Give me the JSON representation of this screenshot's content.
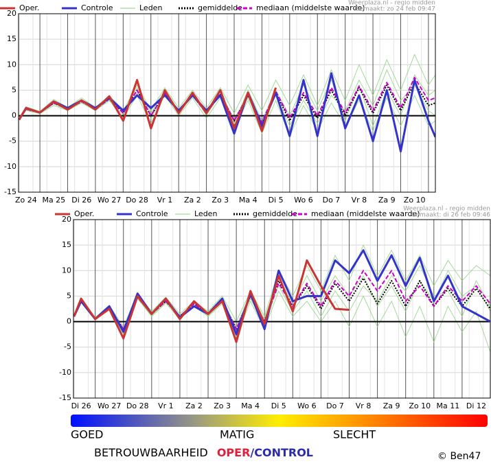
{
  "chart_data": [
    {
      "type": "line",
      "source": "Weerplaza.nl - regio midden",
      "made": "Gemaakt: zo 24 feb 09:47",
      "xlim": [
        -0.27,
        14.75
      ],
      "ylim": [
        -15,
        20
      ],
      "yticks": [
        20,
        15,
        10,
        5,
        0,
        -5,
        -10,
        -15
      ],
      "xticks": [
        {
          "value": 0,
          "label": "Zo 24"
        },
        {
          "value": 1,
          "label": "Ma 25"
        },
        {
          "value": 2,
          "label": "Di 26"
        },
        {
          "value": 3,
          "label": "Wo 27"
        },
        {
          "value": 4,
          "label": "Do 28"
        },
        {
          "value": 5,
          "label": "Vr 1"
        },
        {
          "value": 6,
          "label": "Za 2"
        },
        {
          "value": 7,
          "label": "Zo 3"
        },
        {
          "value": 8,
          "label": "Ma 4"
        },
        {
          "value": 9,
          "label": "Di 5"
        },
        {
          "value": 10,
          "label": "Wo 6"
        },
        {
          "value": 11,
          "label": "Do 7"
        },
        {
          "value": 12,
          "label": "Vr 8"
        },
        {
          "value": 13,
          "label": "Za 9"
        },
        {
          "value": 14,
          "label": "Zo 10"
        }
      ],
      "grid": true,
      "x": [
        -0.25,
        0,
        0.5,
        1,
        1.5,
        2,
        2.5,
        3,
        3.5,
        4,
        4.5,
        5,
        5.5,
        6,
        6.5,
        7,
        7.5,
        8,
        8.5,
        9,
        9.5,
        10,
        10.5,
        11,
        11.5,
        12,
        12.5,
        13,
        13.5,
        14,
        14.5,
        14.75
      ],
      "members": {
        "name": "Leden",
        "color": "#8fd07f",
        "runs": [
          [
            -0.8,
            1.8,
            0.8,
            3.2,
            1.6,
            3.5,
            1.6,
            4,
            1,
            6,
            1,
            5.5,
            1.5,
            5,
            1.5,
            5.5,
            0.5,
            6,
            1,
            7,
            2,
            8,
            2,
            9,
            3,
            10,
            4,
            11,
            5,
            12,
            6,
            8
          ],
          [
            -0.8,
            1,
            0.4,
            2,
            1,
            2.5,
            1,
            3,
            -0.5,
            4,
            -1.5,
            4,
            0,
            3.5,
            -0.5,
            3.5,
            -2.5,
            3,
            -3.5,
            3,
            -4,
            2,
            -3,
            2.5,
            -2,
            3,
            -3,
            3.5,
            -2,
            4,
            -2,
            -1
          ],
          [
            -0.8,
            1.5,
            0.7,
            2.7,
            1.4,
            3.2,
            1.4,
            3.6,
            0.6,
            5.5,
            0.5,
            5,
            1,
            4.5,
            0,
            4.5,
            -1.5,
            5,
            -1,
            5,
            0,
            6,
            1,
            7,
            -1,
            6,
            -2,
            5,
            0,
            8,
            4,
            5
          ],
          [
            -0.8,
            1.2,
            0.5,
            2.3,
            1.1,
            2.6,
            1.2,
            3,
            0,
            4.5,
            -0.5,
            4.2,
            0.5,
            3.8,
            0.8,
            4,
            -0.5,
            3.5,
            -2,
            4,
            -2,
            3,
            -1.5,
            4,
            1,
            7,
            2,
            9,
            3,
            6,
            1,
            0
          ]
        ]
      },
      "series": [
        {
          "name": "Oper.",
          "color": "#cc3333",
          "style": "solid",
          "values": [
            -0.8,
            1.5,
            0.6,
            2.8,
            1.2,
            3,
            1.2,
            3.8,
            -1,
            7,
            -2.5,
            5,
            0.5,
            4.5,
            0.5,
            5,
            -2.5,
            4.5,
            -3,
            5.5,
            null,
            null,
            null,
            null,
            null,
            null,
            null,
            null,
            null,
            null,
            null,
            null
          ]
        },
        {
          "name": "Controle",
          "color": "#3333cc",
          "style": "solid",
          "values": [
            -0.8,
            1.5,
            0.6,
            2.8,
            1.5,
            3,
            1.5,
            3.5,
            1,
            4,
            1.5,
            4,
            1,
            4,
            1,
            4,
            -3.5,
            4.5,
            -2,
            4.5,
            -4,
            7,
            -4,
            8.3,
            -2.5,
            4,
            -5,
            5,
            -7,
            7,
            -1,
            -4.2
          ]
        },
        {
          "name": "gemiddelde",
          "color": "#000000",
          "style": "dotted",
          "values": [
            -0.8,
            1.3,
            0.6,
            2.5,
            1.3,
            2.8,
            1.3,
            3.3,
            0.5,
            5,
            0,
            4.5,
            0.8,
            4,
            0.5,
            4.3,
            -1,
            4,
            -1.5,
            4.5,
            -1,
            4,
            -0.5,
            5,
            0,
            5.5,
            0.5,
            6,
            1,
            6.5,
            2,
            2.5
          ]
        },
        {
          "name": "mediaan (middelste waarde)",
          "color": "#cc00cc",
          "style": "dashed",
          "values": [
            -0.8,
            1.3,
            0.6,
            2.5,
            1.3,
            2.8,
            1.3,
            3.3,
            0.5,
            5,
            0,
            4.5,
            0.8,
            4,
            0.5,
            4.3,
            -1,
            4,
            -1.3,
            4.8,
            -0.5,
            4.5,
            0,
            5.5,
            0.5,
            5.8,
            1,
            6.5,
            1.5,
            7.5,
            3,
            3.5
          ]
        }
      ]
    },
    {
      "type": "line",
      "source": "Weerplaza.nl - regio midden",
      "made": "Gemaakt: di 26 feb 09:46",
      "xlim": [
        -0.27,
        14.5
      ],
      "ylim": [
        -15,
        20
      ],
      "yticks": [
        20,
        15,
        10,
        5,
        0,
        -5,
        -10,
        -15
      ],
      "xticks": [
        {
          "value": 0,
          "label": "Di 26"
        },
        {
          "value": 1,
          "label": "Wo 27"
        },
        {
          "value": 2,
          "label": "Do 28"
        },
        {
          "value": 3,
          "label": "Vr 1"
        },
        {
          "value": 4,
          "label": "Za 2"
        },
        {
          "value": 5,
          "label": "Zo 3"
        },
        {
          "value": 6,
          "label": "Ma 4"
        },
        {
          "value": 7,
          "label": "Di 5"
        },
        {
          "value": 8,
          "label": "Wo 6"
        },
        {
          "value": 9,
          "label": "Do 7"
        },
        {
          "value": 10,
          "label": "Vr 8"
        },
        {
          "value": 11,
          "label": "Za 9"
        },
        {
          "value": 12,
          "label": "Zo 10"
        },
        {
          "value": 13,
          "label": "Ma 11"
        },
        {
          "value": 14,
          "label": "Di 12"
        }
      ],
      "grid": true,
      "x": [
        -0.25,
        0,
        0.5,
        1,
        1.5,
        2,
        2.5,
        3,
        3.5,
        4,
        4.5,
        5,
        5.5,
        6,
        6.5,
        7,
        7.5,
        8,
        8.5,
        9,
        9.5,
        10,
        10.5,
        11,
        11.5,
        12,
        12.5,
        13,
        13.5,
        14,
        14.5
      ],
      "members": {
        "name": "Leden",
        "color": "#8fd07f",
        "runs": [
          [
            1,
            4.5,
            0.8,
            3.2,
            -1,
            5.5,
            2,
            4.8,
            1.5,
            4,
            2,
            5,
            0,
            6,
            1,
            10,
            5,
            11,
            6,
            13,
            8,
            15,
            9,
            14,
            8,
            13,
            7,
            12,
            8,
            11,
            9
          ],
          [
            1,
            3.8,
            0.3,
            2.5,
            -2.5,
            4.5,
            1,
            3.6,
            0.5,
            3,
            1,
            3.5,
            -3,
            4,
            -1.5,
            6,
            1,
            4,
            0,
            4,
            -1,
            5,
            -1,
            4,
            -3,
            3,
            -4,
            3,
            -2,
            2,
            -6
          ],
          [
            1,
            4.2,
            0.6,
            2.9,
            -1.5,
            5,
            1.6,
            4.2,
            1.2,
            3.6,
            1.6,
            4.2,
            -1,
            5.5,
            0.5,
            8.5,
            3.5,
            9,
            4,
            9,
            5,
            9,
            3,
            7,
            2,
            8,
            4,
            10,
            5,
            7,
            2
          ],
          [
            1,
            4,
            0.4,
            2.6,
            -2,
            4.6,
            1.2,
            3.8,
            0.8,
            3.2,
            1.2,
            3.8,
            -2,
            4.5,
            -0.5,
            7,
            2,
            6,
            1,
            6,
            2,
            7,
            4,
            9,
            6,
            11,
            5,
            6,
            1,
            8,
            3
          ]
        ]
      },
      "series": [
        {
          "name": "Oper.",
          "color": "#cc3333",
          "style": "solid",
          "values": [
            1,
            4.5,
            0.5,
            2.5,
            -3.3,
            5,
            1.5,
            4.5,
            0.5,
            4,
            1.5,
            4,
            -4,
            6,
            -0.5,
            9,
            2,
            12,
            7,
            2.5,
            2.3,
            null,
            null,
            null,
            null,
            null,
            null,
            null,
            null,
            null,
            null
          ]
        },
        {
          "name": "Controle",
          "color": "#3333cc",
          "style": "solid",
          "values": [
            1,
            4,
            0.5,
            3,
            -2,
            5.5,
            1.5,
            4.5,
            0.8,
            3,
            1.5,
            4.5,
            -2.5,
            5.5,
            -1.5,
            10,
            4,
            5,
            5,
            12,
            9.5,
            14,
            8,
            13,
            7,
            12.5,
            4,
            9,
            3,
            1.5,
            0
          ]
        },
        {
          "name": "gemiddelde",
          "color": "#000000",
          "style": "dotted",
          "values": [
            1,
            4.2,
            0.5,
            2.8,
            -1.5,
            4.8,
            1.5,
            4,
            1,
            3.5,
            1.5,
            4,
            -1.5,
            5,
            0,
            8,
            3,
            7,
            2.5,
            7.5,
            4,
            8.5,
            3.5,
            8,
            3,
            8,
            3,
            6.5,
            3,
            6.5,
            2.5
          ]
        },
        {
          "name": "mediaan (middelste waarde)",
          "color": "#cc00cc",
          "style": "dashed",
          "values": [
            1,
            4.2,
            0.5,
            2.8,
            -1.5,
            4.8,
            1.5,
            4,
            1,
            3.5,
            1.5,
            4,
            -1.5,
            5,
            0,
            7.5,
            3,
            7.5,
            3,
            8,
            5,
            10,
            6,
            10,
            4,
            7,
            3,
            7,
            4,
            7,
            3.5
          ]
        }
      ]
    }
  ],
  "footer": {
    "scale_labels": [
      "GOED",
      "MATIG",
      "SLECHT"
    ],
    "caption": "BETROUWBAARHEID",
    "oper": "OPER",
    "control": "/CONTROL",
    "credit": "© Ben47"
  }
}
